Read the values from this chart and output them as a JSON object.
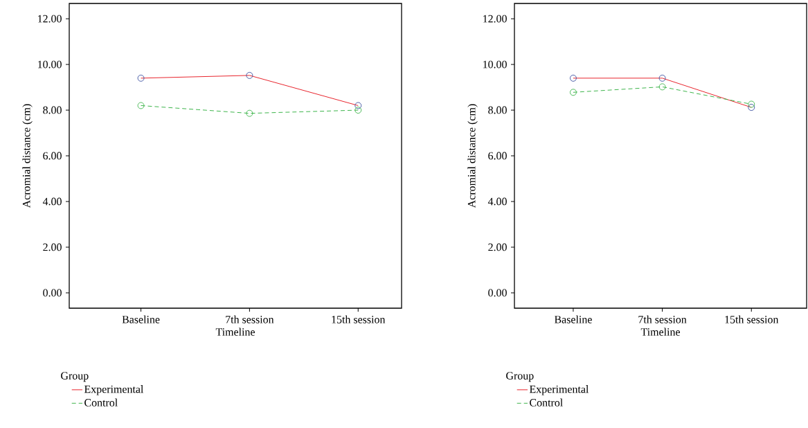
{
  "chart_data": [
    {
      "type": "line",
      "xlabel": "Timeline",
      "ylabel": "Acromial distance (cm)",
      "legend_title": "Group",
      "categories": [
        "Baseline",
        "7th session",
        "15th session"
      ],
      "series": [
        {
          "name": "Experimental",
          "color": "#e8242c",
          "colors": [
            "#3a4fa0",
            "#3a4fa0",
            "#3a4fa0"
          ],
          "values": [
            9.4,
            9.52,
            8.2
          ],
          "line_style": "solid"
        },
        {
          "name": "Control",
          "color": "#3cb44a",
          "values": [
            8.2,
            7.86,
            8.0
          ],
          "line_style": "dashed"
        }
      ],
      "ylim": [
        -0.67,
        12.67
      ],
      "yticks": [
        {
          "value": 0,
          "label": "0.00"
        },
        {
          "value": 2,
          "label": "2.00"
        },
        {
          "value": 4,
          "label": "4.00"
        },
        {
          "value": 6,
          "label": "6.00"
        },
        {
          "value": 8,
          "label": "8.00"
        },
        {
          "value": 10,
          "label": "10.00"
        },
        {
          "value": 12,
          "label": "12.00"
        }
      ],
      "marker": "circle",
      "grid": false,
      "legend": "bottom left"
    },
    {
      "type": "line",
      "xlabel": "Timeline",
      "ylabel": "Acromial distance (cm)",
      "legend_title": "Group",
      "categories": [
        "Baseline",
        "7th session",
        "15th session"
      ],
      "series": [
        {
          "name": "Experimental",
          "color": "#e8242c",
          "colors": [
            "#3a4fa0",
            "#3a4fa0",
            "#3a4fa0"
          ],
          "values": [
            9.4,
            9.4,
            8.12
          ],
          "line_style": "solid"
        },
        {
          "name": "Control",
          "color": "#3cb44a",
          "values": [
            8.78,
            9.02,
            8.26
          ],
          "line_style": "dashed"
        }
      ],
      "ylim": [
        -0.67,
        12.67
      ],
      "yticks": [
        {
          "value": 0,
          "label": "0.00"
        },
        {
          "value": 2,
          "label": "2.00"
        },
        {
          "value": 4,
          "label": "4.00"
        },
        {
          "value": 6,
          "label": "6.00"
        },
        {
          "value": 8,
          "label": "8.00"
        },
        {
          "value": 10,
          "label": "10.00"
        },
        {
          "value": 12,
          "label": "12.00"
        }
      ],
      "marker": "circle",
      "grid": false,
      "legend": "bottom left"
    }
  ]
}
